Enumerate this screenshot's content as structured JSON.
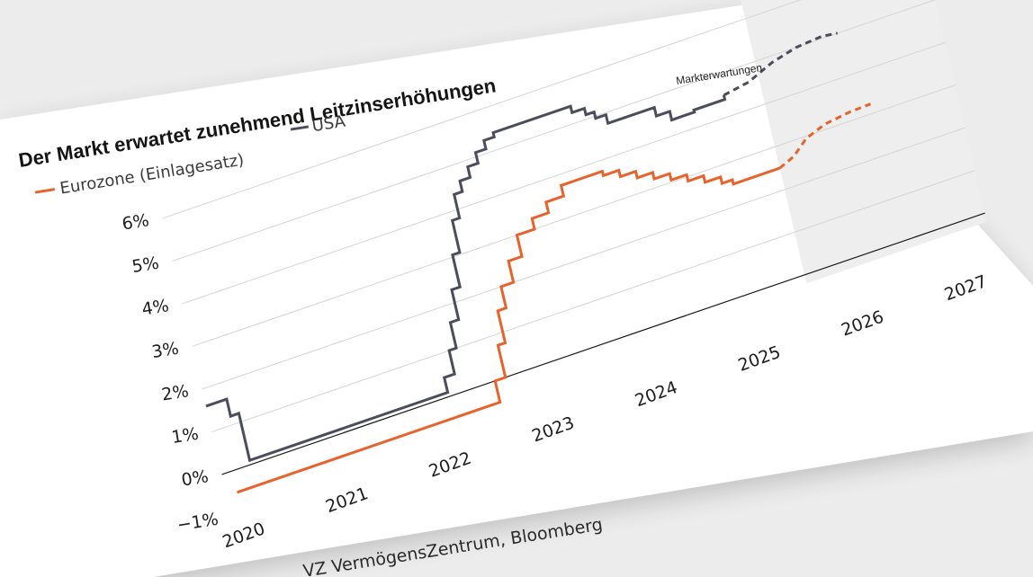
{
  "colors": {
    "background": "#ececec",
    "card": "#ffffff",
    "forecast_shade": "#eeeeef",
    "eurozone": "#e8622c",
    "usa": "#4b4c5e",
    "grid": "#d4d4d4",
    "zero_line": "#1a1a1a"
  },
  "chart_data": {
    "type": "line",
    "title": "Der Markt erwartet zunehmend Leitzinserhöhungen",
    "xlabel": "",
    "ylabel": "",
    "xlim": [
      2019.9,
      2027.3
    ],
    "ylim": [
      -1,
      6.5
    ],
    "xticks": [
      2020,
      2021,
      2022,
      2023,
      2024,
      2025,
      2026,
      2027
    ],
    "xtick_labels": [
      "2020",
      "2021",
      "2022",
      "2023",
      "2024",
      "2025",
      "2026",
      "2027"
    ],
    "yticks": [
      -1,
      0,
      1,
      2,
      3,
      4,
      5,
      6
    ],
    "ytick_labels": [
      "−1%",
      "0%",
      "1%",
      "2%",
      "3%",
      "4%",
      "5%",
      "6%"
    ],
    "grid": true,
    "legend_position": "top-left",
    "forecast_region": {
      "label": "Markterwartungen",
      "x_start": 2025.55,
      "x_end": 2027.3
    },
    "source": "VZ VermögensZentrum, Bloomberg",
    "series": [
      {
        "name": "Eurozone (Einlagesatz)",
        "color": "#e8622c",
        "style": "solid",
        "points": [
          [
            2020.0,
            -0.5
          ],
          [
            2022.55,
            -0.5
          ],
          [
            2022.55,
            0.0
          ],
          [
            2022.65,
            0.0
          ],
          [
            2022.65,
            0.75
          ],
          [
            2022.72,
            0.75
          ],
          [
            2022.72,
            1.5
          ],
          [
            2022.8,
            1.5
          ],
          [
            2022.8,
            2.0
          ],
          [
            2022.92,
            2.0
          ],
          [
            2022.92,
            2.5
          ],
          [
            2023.05,
            2.5
          ],
          [
            2023.05,
            3.0
          ],
          [
            2023.22,
            3.0
          ],
          [
            2023.22,
            3.25
          ],
          [
            2023.38,
            3.25
          ],
          [
            2023.38,
            3.5
          ],
          [
            2023.55,
            3.5
          ],
          [
            2023.55,
            3.75
          ],
          [
            2023.95,
            3.75
          ],
          [
            2023.95,
            3.65
          ],
          [
            2024.1,
            3.65
          ],
          [
            2024.1,
            3.5
          ],
          [
            2024.25,
            3.5
          ],
          [
            2024.25,
            3.35
          ],
          [
            2024.4,
            3.35
          ],
          [
            2024.4,
            3.2
          ],
          [
            2024.55,
            3.2
          ],
          [
            2024.55,
            3.05
          ],
          [
            2024.7,
            3.05
          ],
          [
            2024.7,
            2.9
          ],
          [
            2024.85,
            2.9
          ],
          [
            2024.85,
            2.75
          ],
          [
            2025.0,
            2.75
          ],
          [
            2025.0,
            2.6
          ],
          [
            2025.1,
            2.6
          ],
          [
            2025.1,
            2.5
          ],
          [
            2025.55,
            2.5
          ]
        ]
      },
      {
        "name": "Eurozone (Einlagesatz) forecast",
        "color": "#e8622c",
        "style": "dashed",
        "points": [
          [
            2025.55,
            2.5
          ],
          [
            2025.7,
            2.65
          ],
          [
            2025.85,
            2.95
          ],
          [
            2026.05,
            3.12
          ],
          [
            2026.3,
            3.2
          ],
          [
            2026.5,
            3.22
          ]
        ]
      },
      {
        "name": "USA",
        "color": "#4b4c5e",
        "style": "solid",
        "points": [
          [
            2019.9,
            1.6
          ],
          [
            2020.1,
            1.6
          ],
          [
            2020.1,
            1.2
          ],
          [
            2020.18,
            1.2
          ],
          [
            2020.18,
            0.1
          ],
          [
            2022.1,
            0.1
          ],
          [
            2022.1,
            0.45
          ],
          [
            2022.2,
            0.45
          ],
          [
            2022.2,
            1.0
          ],
          [
            2022.27,
            1.0
          ],
          [
            2022.27,
            1.6
          ],
          [
            2022.35,
            1.6
          ],
          [
            2022.35,
            2.3
          ],
          [
            2022.43,
            2.3
          ],
          [
            2022.43,
            3.05
          ],
          [
            2022.5,
            3.05
          ],
          [
            2022.5,
            3.8
          ],
          [
            2022.57,
            3.8
          ],
          [
            2022.57,
            4.35
          ],
          [
            2022.65,
            4.35
          ],
          [
            2022.65,
            4.6
          ],
          [
            2022.75,
            4.6
          ],
          [
            2022.75,
            4.85
          ],
          [
            2022.85,
            4.85
          ],
          [
            2022.85,
            5.1
          ],
          [
            2022.95,
            5.1
          ],
          [
            2022.95,
            5.3
          ],
          [
            2023.05,
            5.3
          ],
          [
            2023.05,
            5.4
          ],
          [
            2023.8,
            5.4
          ],
          [
            2023.8,
            5.25
          ],
          [
            2023.92,
            5.25
          ],
          [
            2023.92,
            5.1
          ],
          [
            2024.0,
            5.1
          ],
          [
            2024.0,
            4.95
          ],
          [
            2024.1,
            4.95
          ],
          [
            2024.1,
            4.75
          ],
          [
            2024.55,
            4.75
          ],
          [
            2024.55,
            4.55
          ],
          [
            2024.68,
            4.55
          ],
          [
            2024.68,
            4.35
          ],
          [
            2024.8,
            4.35
          ],
          [
            2024.8,
            4.35
          ],
          [
            2024.9,
            4.35
          ],
          [
            2024.9,
            4.4
          ],
          [
            2025.2,
            4.4
          ],
          [
            2025.2,
            4.5
          ]
        ]
      },
      {
        "name": "USA forecast",
        "color": "#4b4c5e",
        "style": "dashed",
        "points": [
          [
            2025.2,
            4.5
          ],
          [
            2025.45,
            4.6
          ],
          [
            2025.7,
            4.85
          ],
          [
            2025.95,
            5.0
          ],
          [
            2026.2,
            5.05
          ],
          [
            2026.35,
            5.0
          ]
        ]
      }
    ]
  }
}
